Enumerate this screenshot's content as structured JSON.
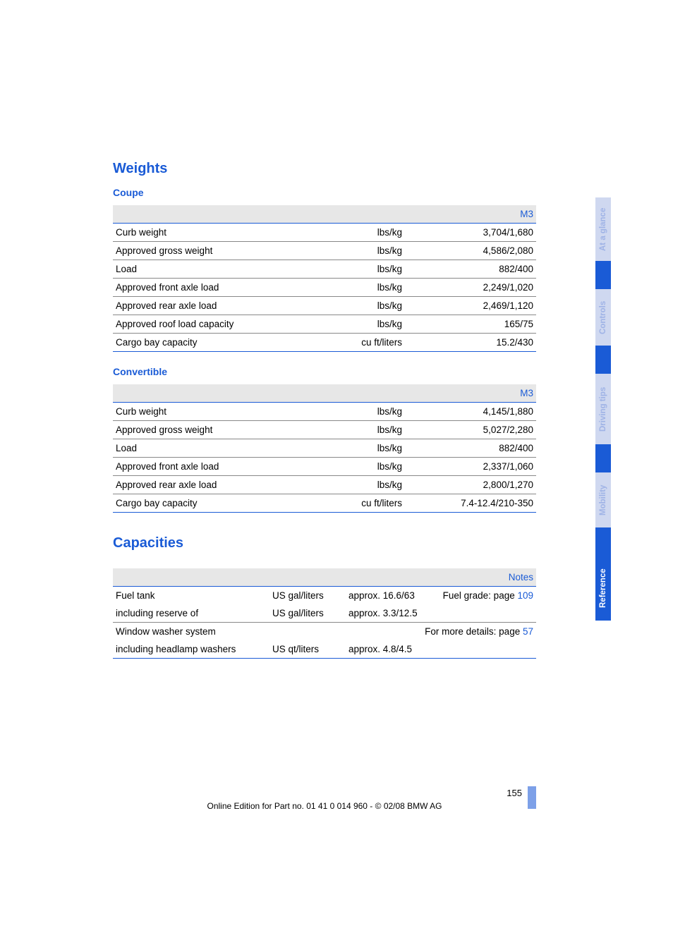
{
  "sections": {
    "weights": {
      "heading": "Weights",
      "coupe": {
        "heading": "Coupe",
        "model_header": "M3",
        "rows": [
          {
            "label": "Curb weight",
            "unit": "lbs/kg",
            "value": "3,704/1,680"
          },
          {
            "label": "Approved gross weight",
            "unit": "lbs/kg",
            "value": "4,586/2,080"
          },
          {
            "label": "Load",
            "unit": "lbs/kg",
            "value": "882/400"
          },
          {
            "label": "Approved front axle load",
            "unit": "lbs/kg",
            "value": "2,249/1,020"
          },
          {
            "label": "Approved rear axle load",
            "unit": "lbs/kg",
            "value": "2,469/1,120"
          },
          {
            "label": "Approved roof load capacity",
            "unit": "lbs/kg",
            "value": "165/75"
          },
          {
            "label": "Cargo bay capacity",
            "unit": "cu ft/liters",
            "value": "15.2/430"
          }
        ]
      },
      "convertible": {
        "heading": "Convertible",
        "model_header": "M3",
        "rows": [
          {
            "label": "Curb weight",
            "unit": "lbs/kg",
            "value": "4,145/1,880"
          },
          {
            "label": "Approved gross weight",
            "unit": "lbs/kg",
            "value": "5,027/2,280"
          },
          {
            "label": "Load",
            "unit": "lbs/kg",
            "value": "882/400"
          },
          {
            "label": "Approved front axle load",
            "unit": "lbs/kg",
            "value": "2,337/1,060"
          },
          {
            "label": "Approved rear axle load",
            "unit": "lbs/kg",
            "value": "2,800/1,270"
          },
          {
            "label": "Cargo bay capacity",
            "unit": "cu ft/liters",
            "value": "7.4-12.4/210-350"
          }
        ]
      }
    },
    "capacities": {
      "heading": "Capacities",
      "notes_header": "Notes",
      "rows": [
        {
          "label": "Fuel tank",
          "unit": "US gal/liters",
          "value": "approx. 16.6/63",
          "note_prefix": "Fuel grade: page ",
          "note_link": "109",
          "sub_label": "including reserve of",
          "sub_unit": "US gal/liters",
          "sub_value": "approx. 3.3/12.5"
        },
        {
          "label": "Window washer system",
          "unit": "",
          "value": "",
          "note_prefix": "For more details: page ",
          "note_link": "57",
          "sub_label": "including headlamp washers",
          "sub_unit": "US qt/liters",
          "sub_value": "approx. 4.8/4.5"
        }
      ]
    }
  },
  "side_tabs": [
    {
      "label": "At a glance",
      "active": false
    },
    {
      "label": "Controls",
      "active": false
    },
    {
      "label": "Driving tips",
      "active": false
    },
    {
      "label": "Mobility",
      "active": false
    },
    {
      "label": "Reference",
      "active": true
    }
  ],
  "footer": {
    "page_number": "155",
    "line": "Online Edition for Part no. 01 41 0 014 960 - © 02/08 BMW AG"
  },
  "colors": {
    "accent": "#1a5bd6",
    "tab_inactive_bg": "#cfd8f0",
    "tab_inactive_fg": "#9fb3e6",
    "header_row_bg": "#e7e7e7"
  }
}
